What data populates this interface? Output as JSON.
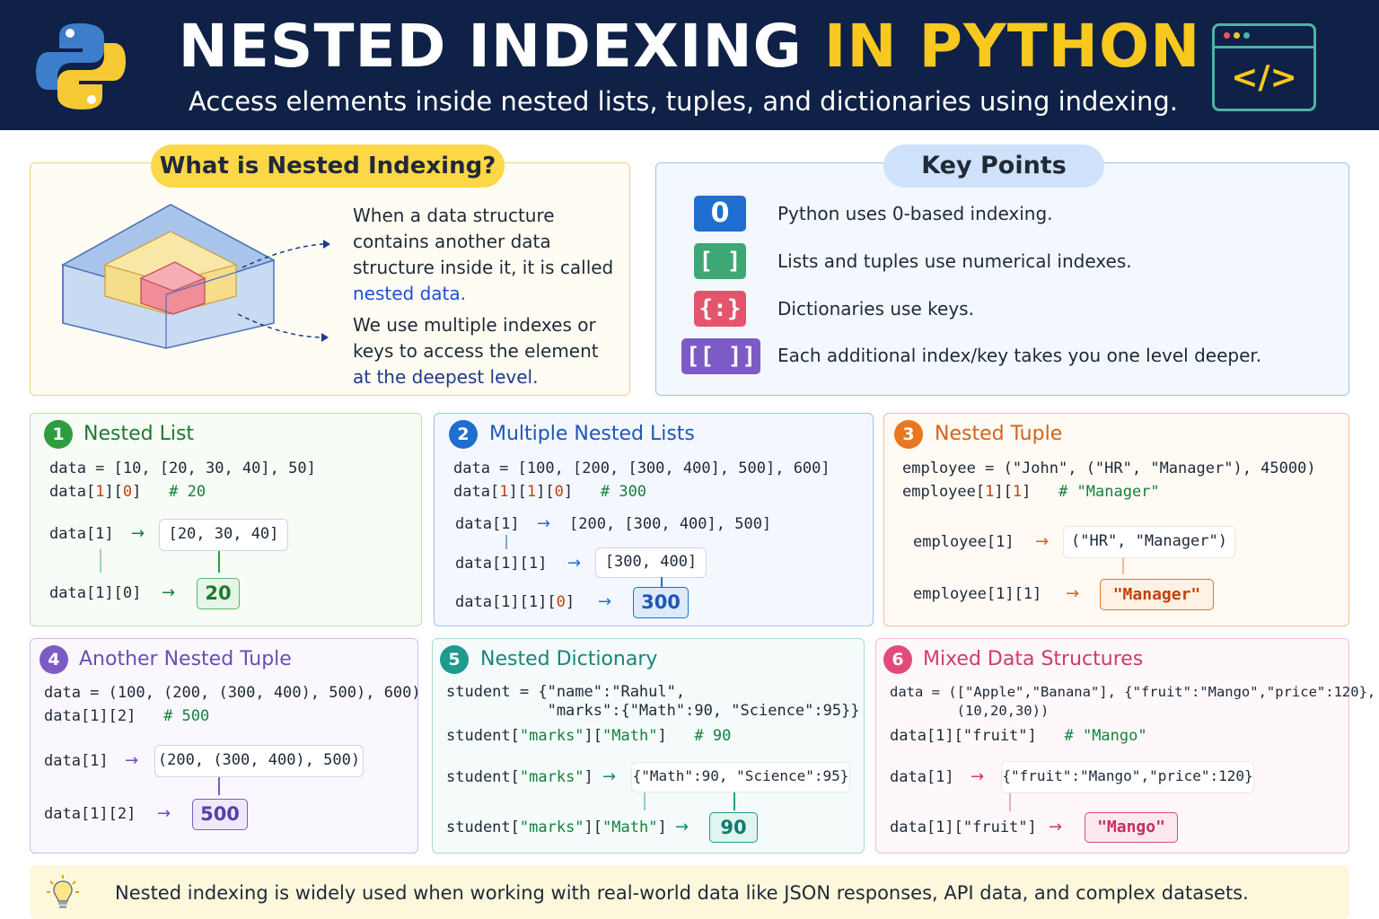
{
  "header": {
    "title_part1": "NESTED INDEXING",
    "title_part2": "IN PYTHON",
    "subtitle": "Access elements inside nested lists, tuples, and dictionaries using indexing.",
    "code_icon_label": "</>"
  },
  "what": {
    "heading": "What is Nested Indexing?",
    "para1_a": "When a data structure contains another data structure inside it, it is called ",
    "para1_b": "nested data.",
    "para2_a": "We use multiple indexes or keys to access the element ",
    "para2_b": "at the deepest level."
  },
  "key_points": {
    "heading": "Key Points",
    "items": [
      {
        "badge": "0",
        "text": "Python uses 0-based indexing.",
        "color": "#1f6fd1"
      },
      {
        "badge": "[ ]",
        "text": "Lists and tuples use numerical indexes.",
        "color": "#3fa775"
      },
      {
        "badge": "{:}",
        "text": "Dictionaries use keys.",
        "color": "#e5546d"
      },
      {
        "badge": "[[ ]]",
        "text": "Each additional index/key takes you one level deeper.",
        "color": "#7c5cc4"
      }
    ]
  },
  "cards": {
    "c1": {
      "num": "1",
      "title": "Nested List",
      "code1": "data = [10, [20, 30, 40], 50]",
      "code2_a": "data[",
      "code2_b": "1",
      "code2_c": "][",
      "code2_d": "0",
      "code2_e": "]",
      "comment": "# 20",
      "step1": "data[1]",
      "box1": "[20, 30, 40]",
      "step2": "data[1][0]",
      "result": "20",
      "color": "#2e9d3f"
    },
    "c2": {
      "num": "2",
      "title": "Multiple Nested Lists",
      "code1": "data = [100, [200, [300, 400], 500], 600]",
      "comment": "# 300",
      "step1": "data[1]",
      "box1": "[200, [300, 400], 500]",
      "step2": "data[1][1]",
      "box2": "[300, 400]",
      "step3_a": "data[1][1][",
      "step3_b": "0",
      "step3_c": "]",
      "result": "300",
      "color": "#1f6fd1"
    },
    "c3": {
      "num": "3",
      "title": "Nested Tuple",
      "code1": "employee = (\"John\", (\"HR\", \"Manager\"), 45000)",
      "code2_pre": "employee[",
      "comment": "# \"Manager\"",
      "step1": "employee[1]",
      "box1": "(\"HR\", \"Manager\")",
      "step2": "employee[1][1]",
      "result": "\"Manager\"",
      "color": "#e8771e"
    },
    "c4": {
      "num": "4",
      "title": "Another Nested Tuple",
      "code1": "data = (100, (200, (300, 400), 500), 600)",
      "code2": "data[1][2]",
      "comment": "# 500",
      "step1": "data[1]",
      "box1": "(200, (300, 400), 500)",
      "step2": "data[1][2]",
      "result": "500",
      "color": "#7c5cc4"
    },
    "c5": {
      "num": "5",
      "title": "Nested Dictionary",
      "code1": "student = {\"name\":\"Rahul\",",
      "code1b": "           \"marks\":{\"Math\":90, \"Science\":95}}",
      "code2_a": "student[",
      "code2_b": "\"marks\"",
      "code2_c": "][",
      "code2_d": "\"Math\"",
      "code2_e": "]",
      "comment": "# 90",
      "step1_a": "student[",
      "step1_b": "\"marks\"",
      "step1_c": "]",
      "box1": "{\"Math\":90, \"Science\":95}",
      "step2_a": "student[",
      "step2_b": "\"marks\"",
      "step2_c": "][",
      "step2_d": "\"Math\"",
      "step2_e": "]",
      "result": "90",
      "color": "#1f9a8f"
    },
    "c6": {
      "num": "6",
      "title": "Mixed Data Structures",
      "code1": "data = ([\"Apple\",\"Banana\"], {\"fruit\":\"Mango\",\"price\":120},",
      "code1b": "        (10,20,30))",
      "code2": "data[1][\"fruit\"]",
      "comment": "# \"Mango\"",
      "step1": "data[1]",
      "box1": "{\"fruit\":\"Mango\",\"price\":120}",
      "step2": "data[1][\"fruit\"]",
      "result": "\"Mango\"",
      "color": "#e04b7a"
    }
  },
  "footer": {
    "text": "Nested indexing is widely used when working with real-world data like JSON responses, API data, and complex datasets."
  }
}
